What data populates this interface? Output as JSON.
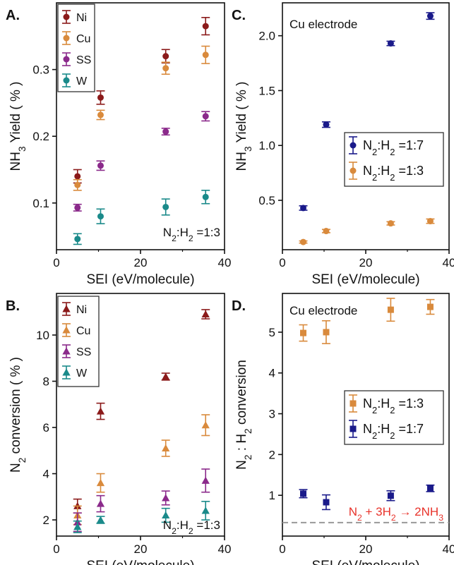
{
  "colors": {
    "Ni": "#8b1a1a",
    "Cu": "#d98a3c",
    "SS": "#8b2a8b",
    "W": "#1a8a8a",
    "n17": "#1a1a8a",
    "n13": "#d98a3c",
    "dashed": "#999999",
    "reaction": "#e8322a"
  },
  "chart_data": [
    {
      "id": "A",
      "letter": "A.",
      "type": "scatter",
      "marker": "circle",
      "xlabel": "SEI (eV/molecule)",
      "ylabel": "NH3 Yield ( % )",
      "xlim": [
        0,
        40
      ],
      "ylim": [
        0.03,
        0.4
      ],
      "xticks": [
        0,
        20,
        40
      ],
      "yticks": [
        0.1,
        0.2,
        0.3
      ],
      "xtick_labels": [
        "0",
        "20",
        "40"
      ],
      "ytick_labels": [
        "0.1",
        "0.2",
        "0.3"
      ],
      "grid": false,
      "legend_position": "top-left",
      "annotation": "N2:H2 =1:3",
      "series": [
        {
          "name": "Ni",
          "color_key": "Ni",
          "points": [
            {
              "x": 5,
              "y": 0.14,
              "err": 0.01
            },
            {
              "x": 10.5,
              "y": 0.258,
              "err": 0.01
            },
            {
              "x": 26,
              "y": 0.32,
              "err": 0.01
            },
            {
              "x": 35.5,
              "y": 0.365,
              "err": 0.013
            }
          ]
        },
        {
          "name": "Cu",
          "color_key": "Cu",
          "points": [
            {
              "x": 5,
              "y": 0.127,
              "err": 0.008
            },
            {
              "x": 10.5,
              "y": 0.232,
              "err": 0.007
            },
            {
              "x": 26,
              "y": 0.302,
              "err": 0.009
            },
            {
              "x": 35.5,
              "y": 0.322,
              "err": 0.013
            }
          ]
        },
        {
          "name": "SS",
          "color_key": "SS",
          "points": [
            {
              "x": 5,
              "y": 0.093,
              "err": 0.005
            },
            {
              "x": 10.5,
              "y": 0.156,
              "err": 0.007
            },
            {
              "x": 26,
              "y": 0.207,
              "err": 0.005
            },
            {
              "x": 35.5,
              "y": 0.23,
              "err": 0.007
            }
          ]
        },
        {
          "name": "W",
          "color_key": "W",
          "points": [
            {
              "x": 5,
              "y": 0.046,
              "err": 0.008
            },
            {
              "x": 10.5,
              "y": 0.08,
              "err": 0.011
            },
            {
              "x": 26,
              "y": 0.094,
              "err": 0.012
            },
            {
              "x": 35.5,
              "y": 0.109,
              "err": 0.01
            }
          ]
        }
      ]
    },
    {
      "id": "B",
      "letter": "B.",
      "type": "scatter",
      "marker": "triangle",
      "xlabel": "SEI (eV/molecule)",
      "ylabel": "N2 conversion ( % )",
      "xlim": [
        0,
        40
      ],
      "ylim": [
        1.3,
        11.8
      ],
      "xticks": [
        0,
        20,
        40
      ],
      "yticks": [
        2,
        4,
        6,
        8,
        10
      ],
      "xtick_labels": [
        "0",
        "20",
        "40"
      ],
      "ytick_labels": [
        "2",
        "4",
        "6",
        "8",
        "10"
      ],
      "grid": false,
      "legend_position": "top-left",
      "annotation": "N2:H2 =1:3",
      "series": [
        {
          "name": "Ni",
          "color_key": "Ni",
          "points": [
            {
              "x": 5,
              "y": 2.6,
              "err": 0.3
            },
            {
              "x": 10.5,
              "y": 6.7,
              "err": 0.35
            },
            {
              "x": 26,
              "y": 8.2,
              "err": 0.15
            },
            {
              "x": 35.5,
              "y": 10.9,
              "err": 0.2
            }
          ]
        },
        {
          "name": "Cu",
          "color_key": "Cu",
          "points": [
            {
              "x": 5,
              "y": 2.2,
              "err": 0.4
            },
            {
              "x": 10.5,
              "y": 3.6,
              "err": 0.4
            },
            {
              "x": 26,
              "y": 5.1,
              "err": 0.35
            },
            {
              "x": 35.5,
              "y": 6.1,
              "err": 0.45
            }
          ]
        },
        {
          "name": "SS",
          "color_key": "SS",
          "points": [
            {
              "x": 5,
              "y": 1.9,
              "err": 0.4
            },
            {
              "x": 10.5,
              "y": 2.7,
              "err": 0.35
            },
            {
              "x": 26,
              "y": 2.95,
              "err": 0.3
            },
            {
              "x": 35.5,
              "y": 3.7,
              "err": 0.5
            }
          ]
        },
        {
          "name": "W",
          "color_key": "W",
          "points": [
            {
              "x": 5,
              "y": 1.7,
              "err": 0.25
            },
            {
              "x": 10.5,
              "y": 2.0,
              "err": 0.15
            },
            {
              "x": 26,
              "y": 2.2,
              "err": 0.3
            },
            {
              "x": 35.5,
              "y": 2.4,
              "err": 0.4
            }
          ]
        }
      ]
    },
    {
      "id": "C",
      "letter": "C.",
      "type": "scatter",
      "marker": "circle",
      "xlabel": "SEI (eV/molecule)",
      "ylabel": "NH3 Yield ( % )",
      "xlim": [
        0,
        40
      ],
      "ylim": [
        0.05,
        2.3
      ],
      "xticks": [
        0,
        20,
        40
      ],
      "yticks": [
        0.5,
        1.0,
        1.5,
        2.0
      ],
      "xtick_labels": [
        "0",
        "20",
        "40"
      ],
      "ytick_labels": [
        "0.5",
        "1.0",
        "1.5",
        "2.0"
      ],
      "grid": false,
      "legend_position": "center-right",
      "annotation": "Cu electrode",
      "series": [
        {
          "name": "N2:H2 =1:7",
          "color_key": "n17",
          "points": [
            {
              "x": 5,
              "y": 0.43,
              "err": 0.02
            },
            {
              "x": 10.5,
              "y": 1.19,
              "err": 0.025
            },
            {
              "x": 26,
              "y": 1.93,
              "err": 0.02
            },
            {
              "x": 35.5,
              "y": 2.18,
              "err": 0.03
            }
          ]
        },
        {
          "name": "N2:H2 =1:3",
          "color_key": "n13",
          "points": [
            {
              "x": 5,
              "y": 0.12,
              "err": 0.01
            },
            {
              "x": 10.5,
              "y": 0.22,
              "err": 0.015
            },
            {
              "x": 26,
              "y": 0.29,
              "err": 0.015
            },
            {
              "x": 35.5,
              "y": 0.31,
              "err": 0.02
            }
          ]
        }
      ]
    },
    {
      "id": "D",
      "letter": "D.",
      "type": "scatter",
      "marker": "square",
      "xlabel": "SEI (eV/molecule)",
      "ylabel": "N2 : H2 conversion",
      "xlim": [
        0,
        40
      ],
      "ylim": [
        0,
        5.95
      ],
      "xticks": [
        0,
        20,
        40
      ],
      "yticks": [
        1,
        2,
        3,
        4,
        5
      ],
      "xtick_labels": [
        "0",
        "20",
        "40"
      ],
      "ytick_labels": [
        "1",
        "2",
        "3",
        "4",
        "5"
      ],
      "grid": false,
      "legend_position": "center-right",
      "annotation": "Cu electrode",
      "reaction_label": "N2 + 3H2 → 2NH3",
      "reference_line_y": 0.33,
      "series": [
        {
          "name": "N2:H2 =1:3",
          "color_key": "n13",
          "points": [
            {
              "x": 5,
              "y": 4.98,
              "err": 0.2
            },
            {
              "x": 10.5,
              "y": 5.0,
              "err": 0.28
            },
            {
              "x": 26,
              "y": 5.55,
              "err": 0.28
            },
            {
              "x": 35.5,
              "y": 5.62,
              "err": 0.18
            }
          ]
        },
        {
          "name": "N2:H2 =1:7",
          "color_key": "n17",
          "points": [
            {
              "x": 5,
              "y": 1.04,
              "err": 0.1
            },
            {
              "x": 10.5,
              "y": 0.83,
              "err": 0.18
            },
            {
              "x": 26,
              "y": 0.99,
              "err": 0.12
            },
            {
              "x": 35.5,
              "y": 1.17,
              "err": 0.08
            }
          ]
        }
      ]
    }
  ]
}
